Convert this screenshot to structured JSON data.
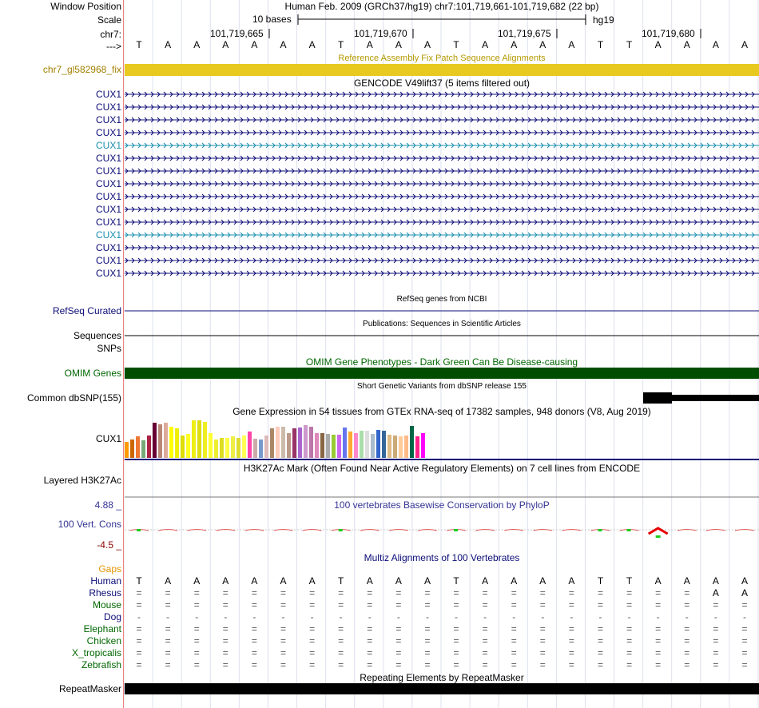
{
  "header": {
    "window_position_label": "Window Position",
    "scale_label": "Scale",
    "chrom_label": "chr7:",
    "strand_label": "--->",
    "assembly_title": "Human Feb. 2009 (GRCh37/hg19)   chr7:101,719,661-101,719,682 (22 bp)",
    "scale_text": "10 bases",
    "db_text": "hg19",
    "positions": [
      "101,719,665",
      "101,719,670",
      "101,719,675",
      "101,719,680"
    ]
  },
  "sequence": [
    "T",
    "A",
    "A",
    "A",
    "A",
    "A",
    "A",
    "T",
    "A",
    "A",
    "A",
    "T",
    "A",
    "A",
    "A",
    "A",
    "T",
    "T",
    "A",
    "A",
    "A",
    "A"
  ],
  "tracks": {
    "fix_patch": {
      "title": "Reference Assembly Fix Patch Sequence Alignments",
      "label": "chr7_gl582968_fix",
      "color": "#e8c91f"
    },
    "gencode": {
      "title": "GENCODE V49lift37 (5 items filtered out)",
      "transcripts": [
        {
          "label": "CUX1",
          "color": "#0c0c78"
        },
        {
          "label": "CUX1",
          "color": "#0c0c78"
        },
        {
          "label": "CUX1",
          "color": "#0c0c78"
        },
        {
          "label": "CUX1",
          "color": "#0c0c78"
        },
        {
          "label": "CUX1",
          "color": "#1a8fb0"
        },
        {
          "label": "CUX1",
          "color": "#0c0c78"
        },
        {
          "label": "CUX1",
          "color": "#0c0c78"
        },
        {
          "label": "CUX1",
          "color": "#0c0c78"
        },
        {
          "label": "CUX1",
          "color": "#0c0c78"
        },
        {
          "label": "CUX1",
          "color": "#0c0c78"
        },
        {
          "label": "CUX1",
          "color": "#0c0c78"
        },
        {
          "label": "CUX1",
          "color": "#1a8fb0"
        },
        {
          "label": "CUX1",
          "color": "#0c0c78"
        },
        {
          "label": "CUX1",
          "color": "#0c0c78"
        },
        {
          "label": "CUX1",
          "color": "#0c0c78"
        }
      ]
    },
    "refseq": {
      "title": "RefSeq genes from NCBI",
      "label": "RefSeq Curated",
      "color": "#0c0c78"
    },
    "publications": {
      "title": "Publications: Sequences in Scientific Articles",
      "label_line1": "Sequences",
      "label_line2": "SNPs"
    },
    "omim": {
      "title": "OMIM Gene Phenotypes - Dark Green Can Be Disease-causing",
      "label": "OMIM Genes",
      "color": "#004d00"
    },
    "dbsnp": {
      "title": "Short Genetic Variants from dbSNP release 155",
      "label": "Common dbSNP(155)"
    },
    "gtex": {
      "title": "Gene Expression in 54 tissues from GTEx RNA-seq of 17382 samples, 948 donors (V8, Aug 2019)",
      "label": "CUX1",
      "tissue_levels": [
        0.43,
        0.5,
        0.57,
        0.46,
        0.59,
        0.93,
        0.89,
        0.93,
        0.84,
        0.78,
        0.59,
        0.63,
        1.0,
        1.0,
        0.96,
        0.65,
        0.5,
        0.54,
        0.54,
        0.57,
        0.54,
        0.59,
        0.7,
        0.52,
        0.5,
        0.59,
        0.79,
        0.83,
        0.83,
        0.67,
        0.78,
        0.8,
        0.87,
        0.83,
        0.65,
        0.65,
        0.63,
        0.61,
        0.61,
        0.8,
        0.7,
        0.65,
        0.72,
        0.72,
        0.63,
        0.74,
        0.72,
        0.61,
        0.59,
        0.57,
        0.59,
        0.85,
        0.57,
        0.65
      ],
      "tissue_colors": [
        "#ff9900",
        "#cc6600",
        "#ee7733",
        "#77aa77",
        "#aa2244",
        "#660033",
        "#bb8877",
        "#ddaa99",
        "#ffff00",
        "#eeee00",
        "#dddd00",
        "#ffff22",
        "#eeee11",
        "#dddd11",
        "#eeee22",
        "#ffff33",
        "#eeee33",
        "#dddd22",
        "#ffff44",
        "#eeee44",
        "#dddd33",
        "#ffff55",
        "#ff44aa",
        "#ccaaaa",
        "#7799cc",
        "#ddbbbb",
        "#aa8866",
        "#ffccbb",
        "#ccbbaa",
        "#bb9988",
        "#993366",
        "#aa66cc",
        "#cc99cc",
        "#bb77aa",
        "#dd88bb",
        "#886644",
        "#aaaaaa",
        "#99cc33",
        "#cc66ee",
        "#6677ee",
        "#ffaa33",
        "#ff88cc",
        "#aaddaa",
        "#dddddd",
        "#aabbcc",
        "#3366cc",
        "#336699",
        "#ddbb88",
        "#ccaa77",
        "#ffcc99",
        "#ffbb88",
        "#006644",
        "#ff2288",
        "#ff00ff"
      ]
    },
    "h3k27ac": {
      "title": "H3K27Ac Mark (Often Found Near Active Regulatory Elements) on 7 cell lines from ENCODE",
      "label": "Layered H3K27Ac"
    },
    "phylop": {
      "title": "100 vertebrates Basewise Conservation by PhyloP",
      "label": "100 Vert. Cons",
      "max_label": "4.88 _",
      "min_label": "-4.5 _",
      "color": "#343495",
      "per_base_score": [
        -0.3,
        -0.3,
        -0.3,
        -0.3,
        -0.3,
        -0.3,
        -0.3,
        -0.3,
        -0.3,
        -0.3,
        -0.3,
        -0.3,
        -0.3,
        -0.3,
        -0.3,
        -0.3,
        -0.3,
        -0.3,
        1.1,
        -0.3,
        -0.3,
        -0.3
      ]
    },
    "multiz": {
      "title": "Multiz Alignments of 100 Vertebrates",
      "gaps_label": "Gaps",
      "species": [
        {
          "name": "Human",
          "color": "#0c0c78",
          "row": [
            "T",
            "A",
            "A",
            "A",
            "A",
            "A",
            "A",
            "T",
            "A",
            "A",
            "A",
            "T",
            "A",
            "A",
            "A",
            "A",
            "T",
            "T",
            "A",
            "A",
            "A",
            "A"
          ]
        },
        {
          "name": "Rhesus",
          "color": "#0c0c78",
          "row": [
            "=",
            "=",
            "=",
            "=",
            "=",
            "=",
            "=",
            "=",
            "=",
            "=",
            "=",
            "=",
            "=",
            "=",
            "=",
            "=",
            "=",
            "=",
            "=",
            "=",
            "A",
            "A"
          ]
        },
        {
          "name": "Mouse",
          "color": "#006600",
          "row": [
            "=",
            "=",
            "=",
            "=",
            "=",
            "=",
            "=",
            "=",
            "=",
            "=",
            "=",
            "=",
            "=",
            "=",
            "=",
            "=",
            "=",
            "=",
            "=",
            "=",
            "=",
            "="
          ]
        },
        {
          "name": "Dog",
          "color": "#0c0c78",
          "row": [
            "-",
            "-",
            "-",
            "-",
            "-",
            "-",
            "-",
            "-",
            "-",
            "-",
            "-",
            "-",
            "-",
            "-",
            "-",
            "-",
            "-",
            "-",
            "-",
            "-",
            "-",
            "-"
          ]
        },
        {
          "name": "Elephant",
          "color": "#006600",
          "row": [
            "=",
            "=",
            "=",
            "=",
            "=",
            "=",
            "=",
            "=",
            "=",
            "=",
            "=",
            "=",
            "=",
            "=",
            "=",
            "=",
            "=",
            "=",
            "=",
            "=",
            "=",
            "="
          ]
        },
        {
          "name": "Chicken",
          "color": "#006600",
          "row": [
            "=",
            "=",
            "=",
            "=",
            "=",
            "=",
            "=",
            "=",
            "=",
            "=",
            "=",
            "=",
            "=",
            "=",
            "=",
            "=",
            "=",
            "=",
            "=",
            "=",
            "=",
            "="
          ]
        },
        {
          "name": "X_tropicalis",
          "color": "#006600",
          "row": [
            "=",
            "=",
            "=",
            "=",
            "=",
            "=",
            "=",
            "=",
            "=",
            "=",
            "=",
            "=",
            "=",
            "=",
            "=",
            "=",
            "=",
            "=",
            "=",
            "=",
            "=",
            "="
          ]
        },
        {
          "name": "Zebrafish",
          "color": "#006600",
          "row": [
            "=",
            "=",
            "=",
            "=",
            "=",
            "=",
            "=",
            "=",
            "=",
            "=",
            "=",
            "=",
            "=",
            "=",
            "=",
            "=",
            "=",
            "=",
            "=",
            "=",
            "=",
            "="
          ]
        }
      ]
    },
    "repeatmasker": {
      "title": "Repeating Elements by RepeatMasker",
      "label": "RepeatMasker"
    }
  }
}
